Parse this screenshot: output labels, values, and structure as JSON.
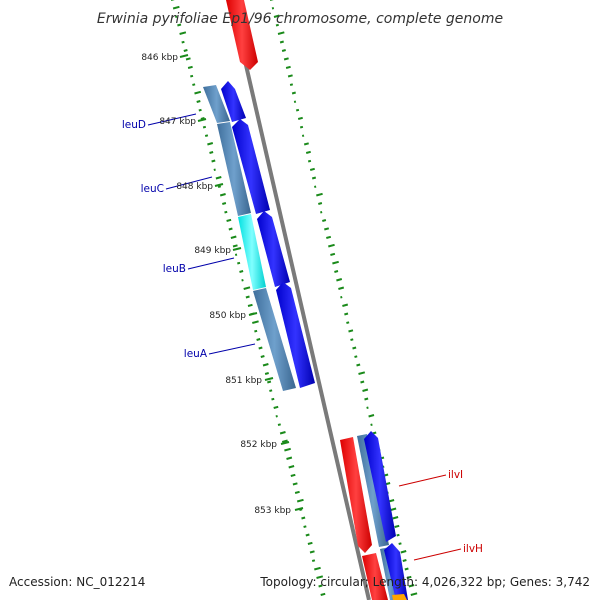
{
  "title": "Erwinia pyrifoliae Ep1/96 chromosome, complete genome",
  "accession": "Accession: NC_012214",
  "topology": "Topology: circular; Length: 4,026,322 bp; Genes: 3,742",
  "ticks": [
    "846 kbp",
    "847 kbp",
    "848 kbp",
    "849 kbp",
    "850 kbp",
    "851 kbp",
    "852 kbp",
    "853 kbp"
  ],
  "genes": {
    "leuD": "leuD",
    "leuC": "leuC",
    "leuB": "leuB",
    "leuA": "leuA",
    "ilvI": "ilvI",
    "ilvH": "ilvH"
  },
  "colors": {
    "forward_cds": "#0000ee",
    "reverse_cds": "#ff0000",
    "gene_bar": "#4f86b8",
    "highlight_bar": "#00ffff",
    "backbone": "#808080",
    "gc_ticks": "#1a8a1a",
    "leu_label": "#0000aa",
    "ilv_label": "#cc0000",
    "orange_feature": "#ffa500"
  }
}
